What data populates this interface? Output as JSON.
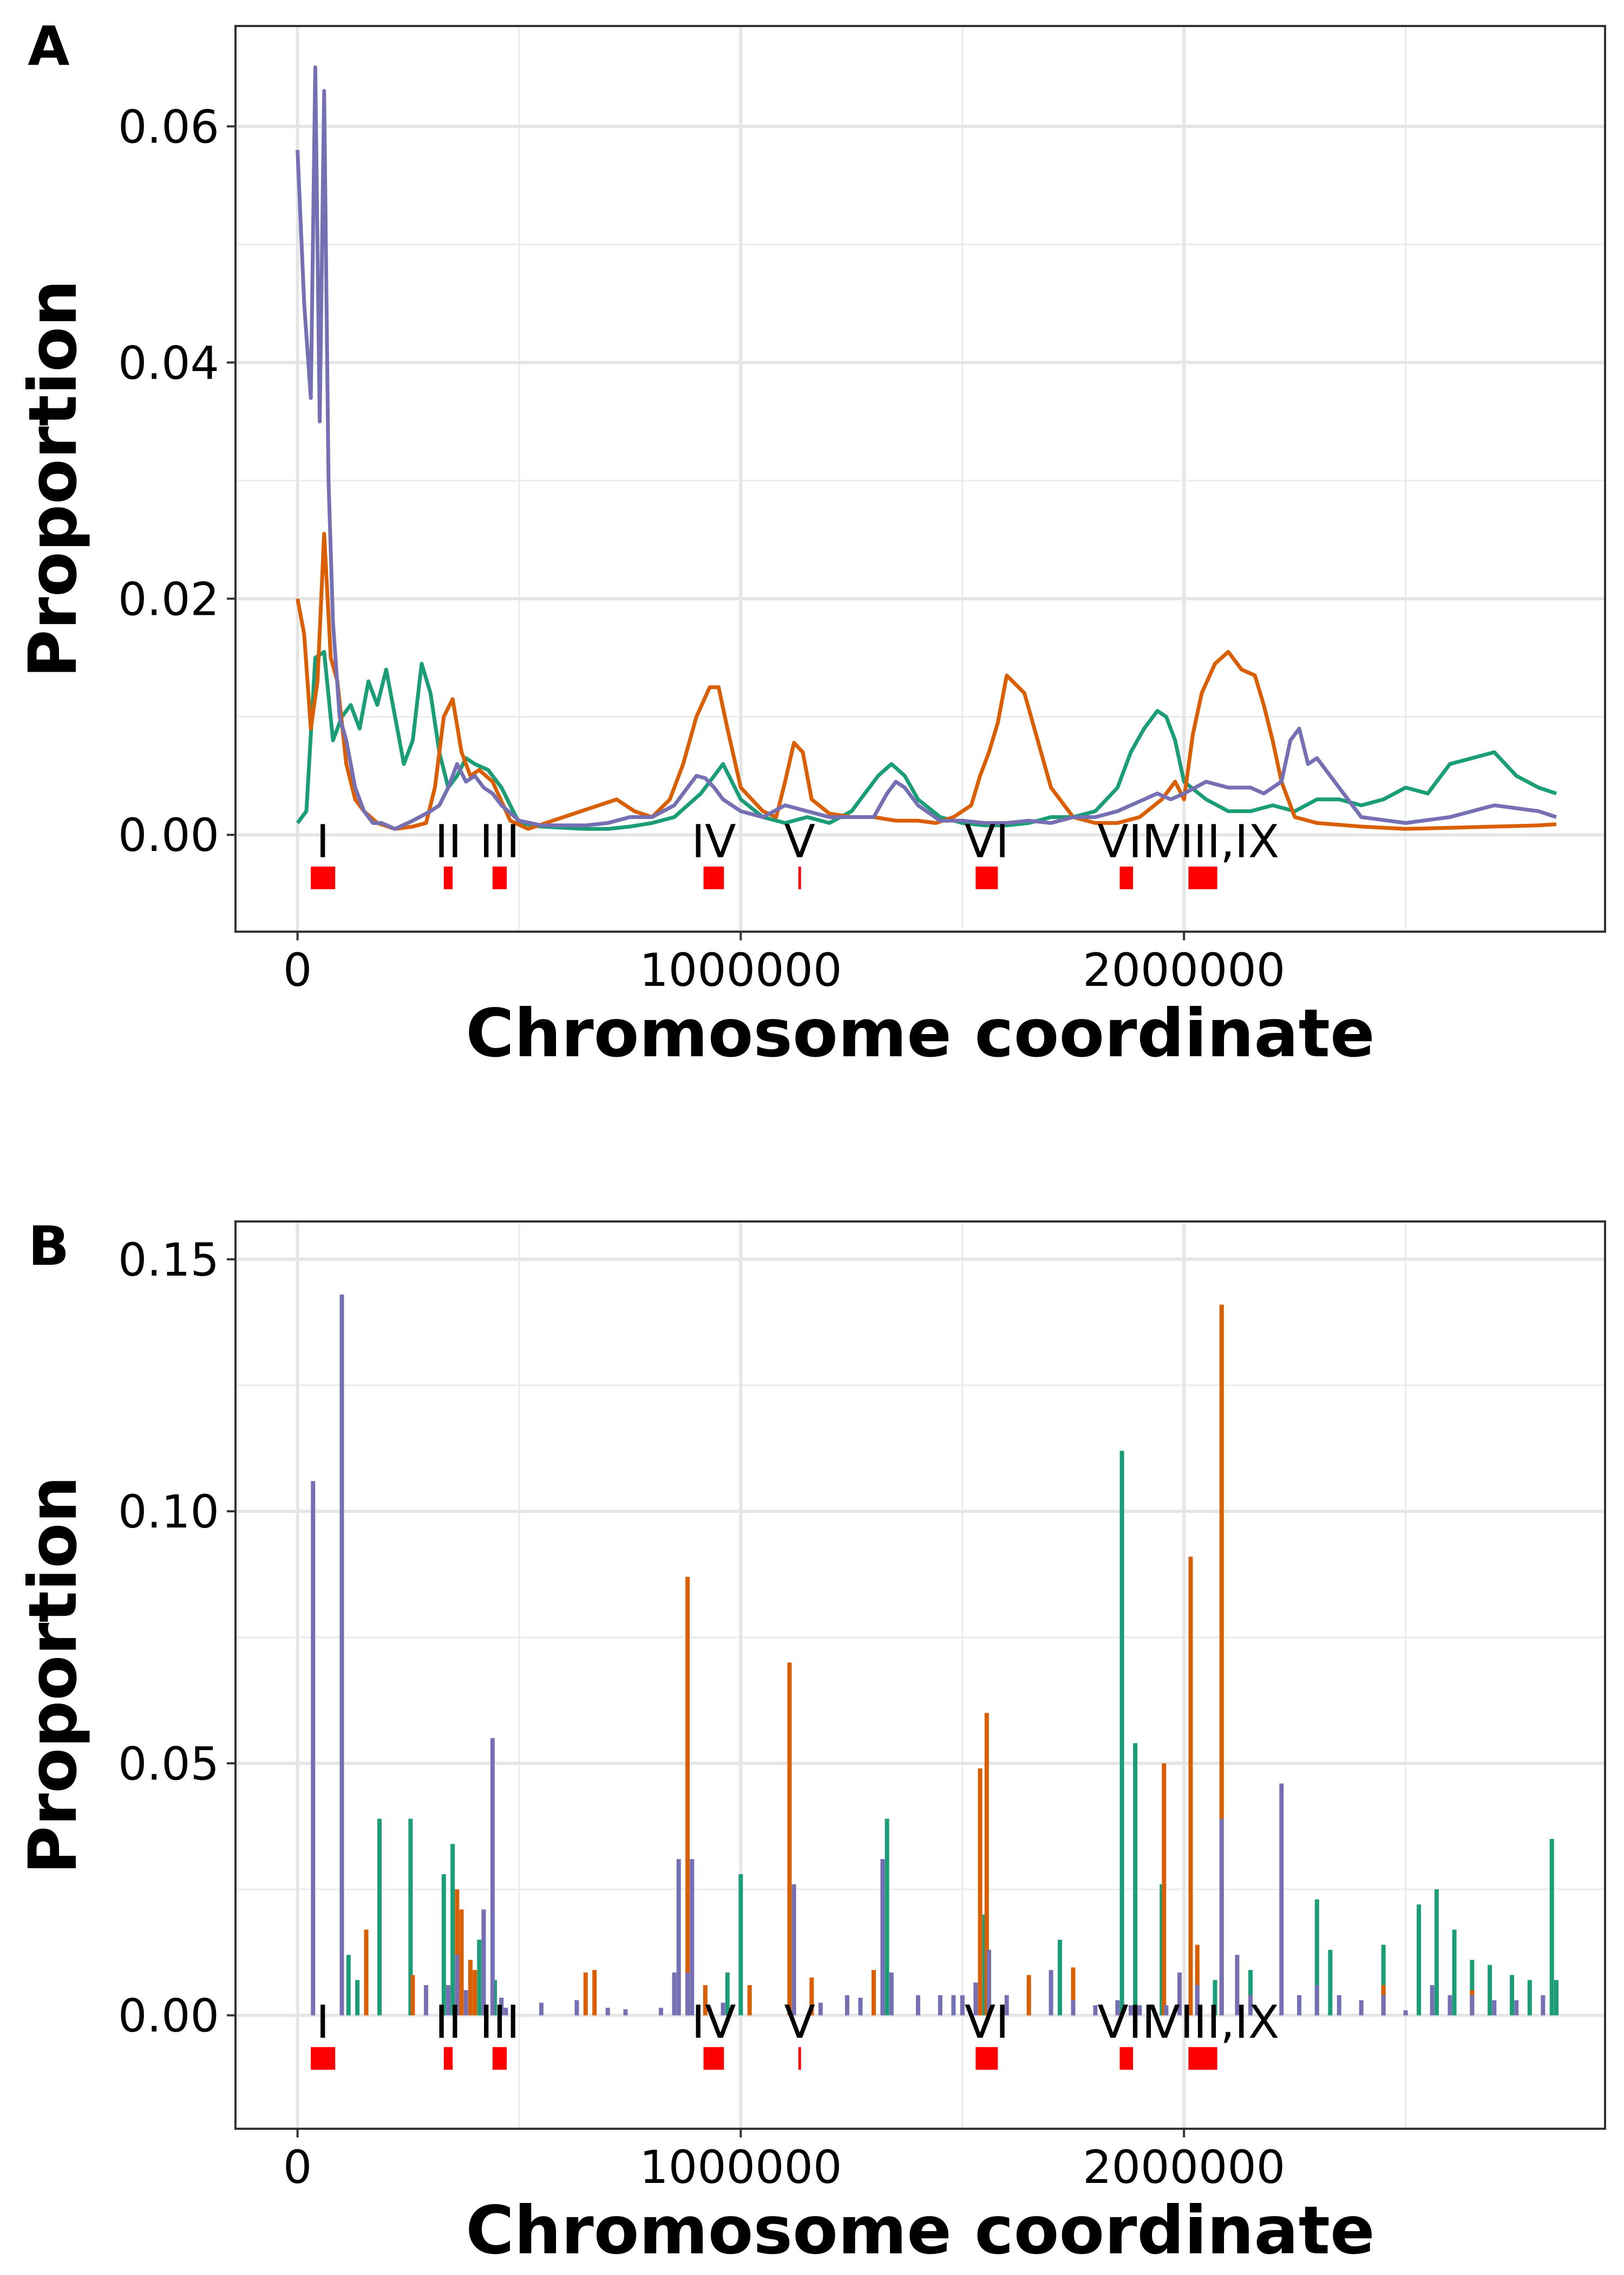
{
  "chart_data": [
    {
      "type": "line",
      "panel_label": "A",
      "xlabel": "Chromosome coordinate",
      "ylabel": "Proportion",
      "xlim": [
        -140000,
        2950000
      ],
      "ylim": [
        -0.0082,
        0.0685
      ],
      "x_ticks": [
        0,
        1000000,
        2000000
      ],
      "x_tick_labels": [
        "0",
        "1000000",
        "2000000"
      ],
      "y_ticks": [
        0.0,
        0.02,
        0.04,
        0.06
      ],
      "y_tick_labels": [
        "0.00",
        "0.02",
        "0.04",
        "0.06"
      ],
      "grid": true,
      "colors": {
        "green": "#1b9e77",
        "orange": "#d95f02",
        "purple": "#7570b3"
      },
      "series": [
        {
          "color": "#1b9e77",
          "x": [
            0,
            20000,
            40000,
            60000,
            80000,
            100000,
            120000,
            140000,
            160000,
            180000,
            200000,
            220000,
            240000,
            260000,
            280000,
            300000,
            320000,
            340000,
            360000,
            380000,
            400000,
            430000,
            460000,
            500000,
            550000,
            600000,
            650000,
            700000,
            750000,
            800000,
            850000,
            880000,
            910000,
            940000,
            960000,
            980000,
            1000000,
            1050000,
            1100000,
            1150000,
            1200000,
            1250000,
            1280000,
            1310000,
            1340000,
            1370000,
            1400000,
            1450000,
            1500000,
            1550000,
            1600000,
            1650000,
            1700000,
            1750000,
            1800000,
            1850000,
            1880000,
            1910000,
            1940000,
            1960000,
            1980000,
            2000000,
            2050000,
            2100000,
            2150000,
            2200000,
            2250000,
            2300000,
            2350000,
            2400000,
            2450000,
            2500000,
            2550000,
            2600000,
            2650000,
            2700000,
            2750000,
            2800000,
            2840000
          ],
          "y": [
            0.001,
            0.002,
            0.015,
            0.0155,
            0.008,
            0.01,
            0.011,
            0.009,
            0.013,
            0.011,
            0.014,
            0.01,
            0.006,
            0.008,
            0.0145,
            0.012,
            0.007,
            0.004,
            0.005,
            0.0065,
            0.006,
            0.0055,
            0.004,
            0.001,
            0.0007,
            0.0006,
            0.0005,
            0.0005,
            0.0007,
            0.001,
            0.0015,
            0.0025,
            0.0035,
            0.005,
            0.006,
            0.0045,
            0.003,
            0.0015,
            0.001,
            0.0015,
            0.001,
            0.002,
            0.0035,
            0.005,
            0.006,
            0.005,
            0.003,
            0.0015,
            0.001,
            0.0008,
            0.0008,
            0.001,
            0.0015,
            0.0015,
            0.002,
            0.004,
            0.007,
            0.009,
            0.0105,
            0.01,
            0.008,
            0.0045,
            0.003,
            0.002,
            0.002,
            0.0025,
            0.002,
            0.003,
            0.003,
            0.0025,
            0.003,
            0.004,
            0.0035,
            0.006,
            0.0065,
            0.007,
            0.005,
            0.004,
            0.0035
          ]
        },
        {
          "color": "#d95f02",
          "x": [
            0,
            15000,
            30000,
            45000,
            60000,
            75000,
            90000,
            110000,
            130000,
            150000,
            180000,
            220000,
            260000,
            290000,
            310000,
            330000,
            350000,
            370000,
            390000,
            410000,
            440000,
            480000,
            520000,
            560000,
            600000,
            640000,
            680000,
            720000,
            760000,
            800000,
            840000,
            870000,
            900000,
            930000,
            950000,
            970000,
            1000000,
            1050000,
            1080000,
            1100000,
            1120000,
            1140000,
            1160000,
            1200000,
            1250000,
            1300000,
            1350000,
            1400000,
            1440000,
            1480000,
            1500000,
            1520000,
            1540000,
            1560000,
            1580000,
            1600000,
            1640000,
            1700000,
            1750000,
            1800000,
            1850000,
            1900000,
            1950000,
            1980000,
            2000000,
            2020000,
            2040000,
            2070000,
            2100000,
            2130000,
            2160000,
            2180000,
            2200000,
            2220000,
            2250000,
            2300000,
            2400000,
            2500000,
            2600000,
            2700000,
            2800000,
            2840000
          ],
          "y": [
            0.02,
            0.017,
            0.009,
            0.013,
            0.0255,
            0.015,
            0.013,
            0.006,
            0.003,
            0.002,
            0.001,
            0.0005,
            0.0007,
            0.001,
            0.004,
            0.01,
            0.0115,
            0.007,
            0.005,
            0.0055,
            0.0045,
            0.0012,
            0.0005,
            0.001,
            0.0015,
            0.002,
            0.0025,
            0.003,
            0.002,
            0.0015,
            0.003,
            0.006,
            0.01,
            0.0125,
            0.0125,
            0.009,
            0.004,
            0.002,
            0.0015,
            0.0045,
            0.0078,
            0.007,
            0.003,
            0.0018,
            0.0015,
            0.0015,
            0.0012,
            0.0012,
            0.001,
            0.0015,
            0.002,
            0.0025,
            0.005,
            0.007,
            0.0095,
            0.0135,
            0.012,
            0.004,
            0.0015,
            0.001,
            0.001,
            0.0015,
            0.003,
            0.0045,
            0.003,
            0.0085,
            0.012,
            0.0145,
            0.0155,
            0.014,
            0.0135,
            0.011,
            0.008,
            0.0045,
            0.0015,
            0.001,
            0.0007,
            0.0005,
            0.0006,
            0.0007,
            0.0008,
            0.0009
          ]
        },
        {
          "color": "#7570b3",
          "x": [
            0,
            15000,
            30000,
            40000,
            50000,
            60000,
            70000,
            80000,
            95000,
            110000,
            130000,
            150000,
            170000,
            190000,
            220000,
            260000,
            300000,
            320000,
            340000,
            360000,
            380000,
            400000,
            420000,
            440000,
            460000,
            500000,
            550000,
            600000,
            650000,
            700000,
            750000,
            800000,
            850000,
            880000,
            900000,
            920000,
            940000,
            960000,
            980000,
            1000000,
            1050000,
            1100000,
            1150000,
            1200000,
            1250000,
            1300000,
            1330000,
            1350000,
            1370000,
            1400000,
            1450000,
            1500000,
            1550000,
            1600000,
            1650000,
            1700000,
            1750000,
            1800000,
            1850000,
            1880000,
            1910000,
            1940000,
            1970000,
            2000000,
            2050000,
            2100000,
            2150000,
            2180000,
            2200000,
            2220000,
            2240000,
            2260000,
            2280000,
            2300000,
            2350000,
            2400000,
            2500000,
            2600000,
            2700000,
            2800000,
            2840000
          ],
          "y": [
            0.058,
            0.045,
            0.037,
            0.065,
            0.035,
            0.063,
            0.03,
            0.018,
            0.01,
            0.008,
            0.004,
            0.002,
            0.001,
            0.001,
            0.0005,
            0.0012,
            0.002,
            0.0025,
            0.004,
            0.006,
            0.0045,
            0.005,
            0.004,
            0.0035,
            0.0025,
            0.0012,
            0.0008,
            0.0008,
            0.0008,
            0.001,
            0.0015,
            0.0015,
            0.0025,
            0.004,
            0.005,
            0.0048,
            0.004,
            0.003,
            0.0025,
            0.002,
            0.0015,
            0.0025,
            0.002,
            0.0015,
            0.0015,
            0.0015,
            0.0035,
            0.0045,
            0.004,
            0.0025,
            0.0012,
            0.0012,
            0.001,
            0.001,
            0.0012,
            0.001,
            0.0015,
            0.0015,
            0.002,
            0.0025,
            0.003,
            0.0035,
            0.003,
            0.0035,
            0.0045,
            0.004,
            0.004,
            0.0035,
            0.004,
            0.0045,
            0.008,
            0.009,
            0.006,
            0.0065,
            0.004,
            0.0015,
            0.001,
            0.0015,
            0.0025,
            0.002,
            0.0015
          ]
        }
      ],
      "regions": [
        {
          "label": "I",
          "start": 30000,
          "end": 85000,
          "label_x": 57000
        },
        {
          "label": "II",
          "start": 330000,
          "end": 350000,
          "label_x": 340000
        },
        {
          "label": "III",
          "start": 440000,
          "end": 472000,
          "label_x": 456000
        },
        {
          "label": "IV",
          "start": 916000,
          "end": 962000,
          "label_x": 939000
        },
        {
          "label": "V",
          "start": 1130000,
          "end": 1136000,
          "label_x": 1133000
        },
        {
          "label": "VI",
          "start": 1530000,
          "end": 1580000,
          "label_x": 1555000
        },
        {
          "label": "VII",
          "start": 1855000,
          "end": 1885000,
          "label_x": 1870000
        },
        {
          "label": "VIII,IX",
          "start": 2010000,
          "end": 2075000,
          "label_x": 2068000
        }
      ],
      "region_color": "#ff0000"
    },
    {
      "type": "bar",
      "panel_label": "B",
      "xlabel": "Chromosome coordinate",
      "ylabel": "Proportion",
      "xlim": [
        -140000,
        2950000
      ],
      "ylim": [
        -0.0225,
        0.1575
      ],
      "x_ticks": [
        0,
        1000000,
        2000000
      ],
      "x_tick_labels": [
        "0",
        "1000000",
        "2000000"
      ],
      "y_ticks": [
        0.0,
        0.05,
        0.1,
        0.15
      ],
      "y_tick_labels": [
        "0.00",
        "0.05",
        "0.10",
        "0.15"
      ],
      "grid": true,
      "colors": {
        "green": "#1b9e77",
        "orange": "#d95f02",
        "purple": "#7570b3"
      },
      "series": [
        {
          "color": "#1b9e77",
          "x": [
            115000,
            135000,
            185000,
            255000,
            330000,
            350000,
            410000,
            445000,
            630000,
            970000,
            1000000,
            1330000,
            1550000,
            1650000,
            1720000,
            1860000,
            1890000,
            1950000,
            2030000,
            2070000,
            2150000,
            2300000,
            2330000,
            2450000,
            2530000,
            2570000,
            2610000,
            2650000,
            2690000,
            2740000,
            2780000,
            2830000,
            2840000
          ],
          "y": [
            0.012,
            0.007,
            0.039,
            0.039,
            0.028,
            0.034,
            0.015,
            0.007,
            0.003,
            0.0085,
            0.028,
            0.039,
            0.02,
            0.006,
            0.015,
            0.112,
            0.054,
            0.026,
            0.01,
            0.007,
            0.009,
            0.023,
            0.013,
            0.014,
            0.022,
            0.025,
            0.017,
            0.011,
            0.01,
            0.008,
            0.007,
            0.035,
            0.007
          ]
        },
        {
          "color": "#d95f02",
          "x": [
            155000,
            260000,
            360000,
            370000,
            390000,
            400000,
            420000,
            650000,
            670000,
            880000,
            920000,
            1020000,
            1110000,
            1160000,
            1300000,
            1540000,
            1555000,
            1650000,
            1750000,
            1955000,
            2015000,
            2030000,
            2085000,
            2450000,
            2650000
          ],
          "y": [
            0.017,
            0.008,
            0.025,
            0.021,
            0.011,
            0.009,
            0.006,
            0.0085,
            0.009,
            0.087,
            0.006,
            0.006,
            0.07,
            0.0075,
            0.009,
            0.049,
            0.06,
            0.008,
            0.0095,
            0.05,
            0.091,
            0.014,
            0.141,
            0.006,
            0.005
          ]
        },
        {
          "color": "#7570b3",
          "x": [
            35000,
            100000,
            290000,
            340000,
            360000,
            380000,
            420000,
            440000,
            460000,
            470000,
            550000,
            630000,
            700000,
            740000,
            820000,
            850000,
            860000,
            880000,
            890000,
            960000,
            1120000,
            1180000,
            1240000,
            1270000,
            1320000,
            1340000,
            1400000,
            1450000,
            1480000,
            1500000,
            1530000,
            1560000,
            1600000,
            1700000,
            1750000,
            1800000,
            1850000,
            1880000,
            1900000,
            1960000,
            1990000,
            2030000,
            2085000,
            2120000,
            2150000,
            2220000,
            2260000,
            2300000,
            2350000,
            2400000,
            2450000,
            2500000,
            2560000,
            2600000,
            2650000,
            2700000,
            2750000,
            2810000
          ],
          "y": [
            0.106,
            0.143,
            0.006,
            0.006,
            0.012,
            0.005,
            0.021,
            0.055,
            0.0035,
            0.0015,
            0.0025,
            0.003,
            0.0015,
            0.0012,
            0.0015,
            0.0085,
            0.031,
            0.0085,
            0.031,
            0.0025,
            0.026,
            0.0025,
            0.004,
            0.0035,
            0.031,
            0.0085,
            0.004,
            0.004,
            0.004,
            0.004,
            0.0065,
            0.013,
            0.004,
            0.009,
            0.003,
            0.002,
            0.003,
            0.002,
            0.002,
            0.002,
            0.0085,
            0.006,
            0.039,
            0.012,
            0.004,
            0.046,
            0.004,
            0.006,
            0.004,
            0.003,
            0.004,
            0.001,
            0.006,
            0.004,
            0.004,
            0.003,
            0.003,
            0.004
          ]
        }
      ],
      "regions": [
        {
          "label": "I",
          "start": 30000,
          "end": 85000,
          "label_x": 57000
        },
        {
          "label": "II",
          "start": 330000,
          "end": 350000,
          "label_x": 340000
        },
        {
          "label": "III",
          "start": 440000,
          "end": 472000,
          "label_x": 456000
        },
        {
          "label": "IV",
          "start": 916000,
          "end": 962000,
          "label_x": 939000
        },
        {
          "label": "V",
          "start": 1130000,
          "end": 1136000,
          "label_x": 1133000
        },
        {
          "label": "VI",
          "start": 1530000,
          "end": 1580000,
          "label_x": 1555000
        },
        {
          "label": "VII",
          "start": 1855000,
          "end": 1885000,
          "label_x": 1870000
        },
        {
          "label": "VIII,IX",
          "start": 2010000,
          "end": 2075000,
          "label_x": 2068000
        }
      ],
      "region_color": "#ff0000"
    }
  ]
}
